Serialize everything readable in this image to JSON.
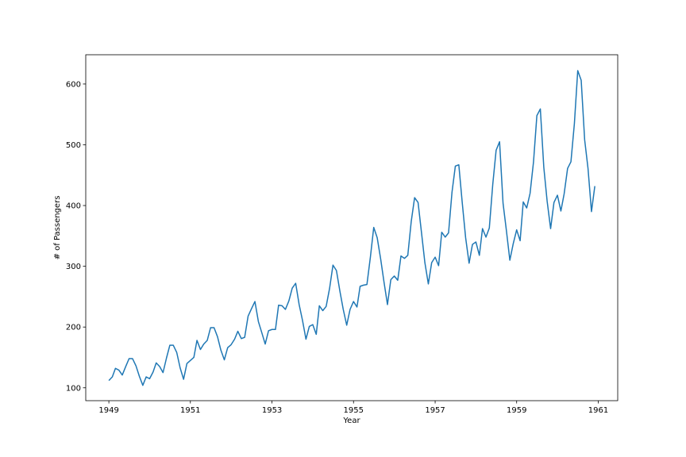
{
  "chart_data": {
    "type": "line",
    "title": "",
    "xlabel": "Year",
    "ylabel": "# of Passengers",
    "x_ticks": [
      "1949",
      "1951",
      "1953",
      "1955",
      "1957",
      "1959",
      "1961"
    ],
    "y_ticks": [
      "100",
      "200",
      "300",
      "400",
      "500",
      "600"
    ],
    "xlim": [
      "1948-06-08",
      "1961-06-24"
    ],
    "ylim": [
      78.8,
      648.2
    ],
    "grid": false,
    "legend": "none",
    "x_start": "1949-01",
    "x_frequency": "monthly",
    "series": [
      {
        "color": "#1f77b4",
        "values": [
          112,
          118,
          132,
          129,
          121,
          135,
          148,
          148,
          136,
          119,
          104,
          118,
          115,
          126,
          141,
          135,
          125,
          149,
          170,
          170,
          158,
          133,
          114,
          140,
          145,
          150,
          178,
          163,
          172,
          178,
          199,
          199,
          184,
          162,
          146,
          166,
          171,
          180,
          193,
          181,
          183,
          218,
          230,
          242,
          209,
          191,
          172,
          194,
          196,
          196,
          236,
          235,
          229,
          243,
          264,
          272,
          237,
          211,
          180,
          201,
          204,
          188,
          235,
          227,
          234,
          264,
          302,
          293,
          259,
          229,
          203,
          229,
          242,
          233,
          267,
          269,
          270,
          315,
          364,
          347,
          312,
          274,
          237,
          278,
          284,
          277,
          317,
          313,
          318,
          374,
          413,
          405,
          355,
          306,
          271,
          306,
          315,
          301,
          356,
          348,
          355,
          422,
          465,
          467,
          404,
          347,
          305,
          336,
          340,
          318,
          362,
          348,
          363,
          435,
          491,
          505,
          404,
          359,
          310,
          337,
          360,
          342,
          406,
          396,
          420,
          472,
          548,
          559,
          463,
          407,
          362,
          405,
          417,
          391,
          419,
          461,
          472,
          535,
          622,
          606,
          508,
          461,
          390,
          432
        ]
      }
    ]
  }
}
